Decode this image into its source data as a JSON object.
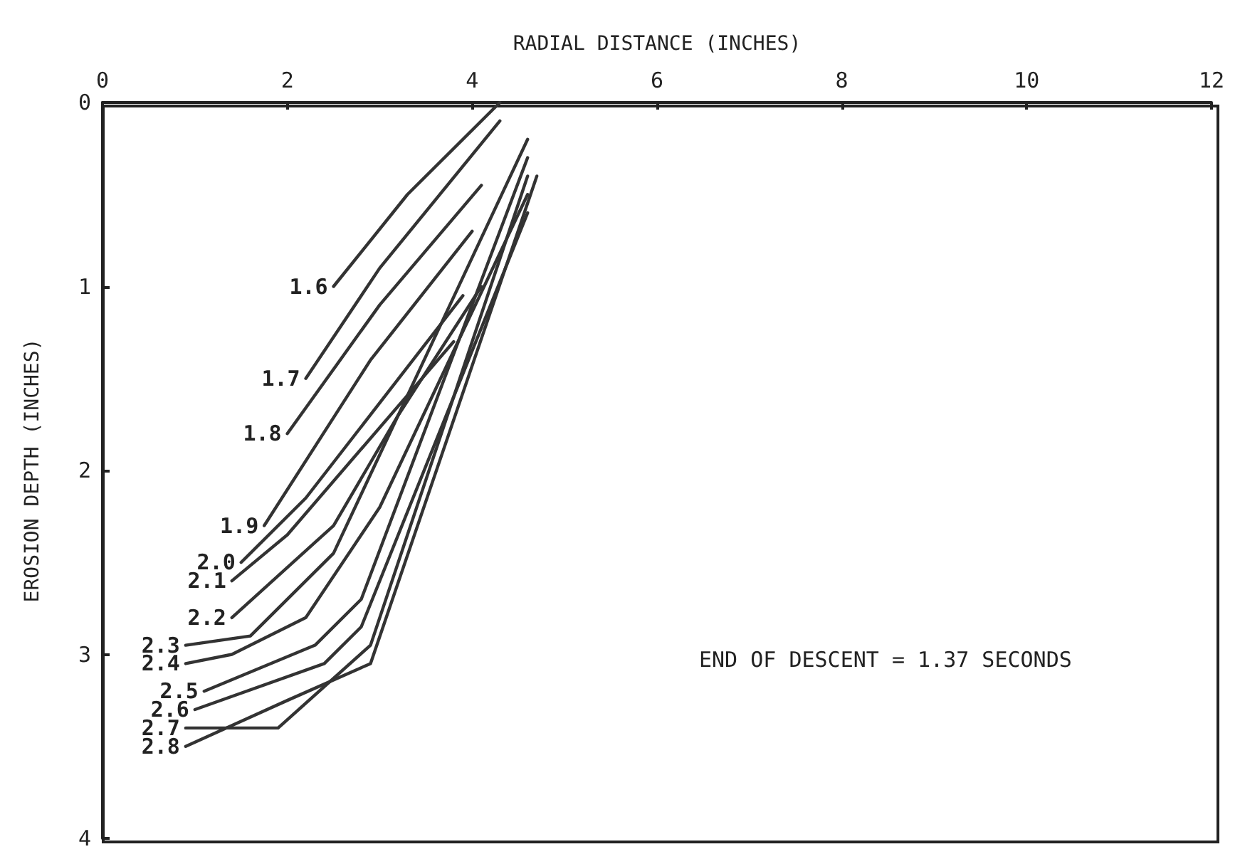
{
  "chart_data": {
    "type": "line",
    "xlabel": "RADIAL DISTANCE (INCHES)",
    "ylabel": "EROSION DEPTH (INCHES)",
    "xlim": [
      0,
      12
    ],
    "xticks": [
      0,
      2,
      4,
      6,
      8,
      10,
      12
    ],
    "ylim": [
      4,
      0
    ],
    "yticks": [
      0,
      1,
      2,
      3,
      4
    ],
    "grid": false,
    "legend": false,
    "marker": "none",
    "line_style": "solid",
    "annotations": [
      "END OF DESCENT = 1.37 SECONDS"
    ],
    "series": [
      {
        "name": "1.6",
        "color": "#333333",
        "x": [
          2.5,
          3.3,
          4.3
        ],
        "values": [
          1.0,
          0.5,
          0
        ]
      },
      {
        "name": "1.7",
        "color": "#333333",
        "x": [
          2.2,
          3.0,
          4.3
        ],
        "values": [
          1.5,
          0.9,
          0.1
        ]
      },
      {
        "name": "1.8",
        "color": "#333333",
        "x": [
          2.0,
          3.0,
          4.1
        ],
        "values": [
          1.8,
          1.1,
          0.45
        ]
      },
      {
        "name": "1.9",
        "color": "#333333",
        "x": [
          1.75,
          2.9,
          4.0
        ],
        "values": [
          2.3,
          1.4,
          0.7
        ]
      },
      {
        "name": "2.0",
        "color": "#333333",
        "x": [
          1.5,
          2.2,
          3.9
        ],
        "values": [
          2.5,
          2.15,
          1.05
        ]
      },
      {
        "name": "2.1",
        "color": "#333333",
        "x": [
          1.4,
          2.0,
          3.8
        ],
        "values": [
          2.6,
          2.35,
          1.3
        ]
      },
      {
        "name": "2.2",
        "color": "#333333",
        "x": [
          1.4,
          2.5,
          3.2,
          4.1
        ],
        "values": [
          2.8,
          2.3,
          1.7,
          1.0
        ]
      },
      {
        "name": "2.3",
        "color": "#333333",
        "x": [
          0.9,
          1.6,
          2.5,
          4.6
        ],
        "values": [
          2.95,
          2.9,
          2.45,
          0.2
        ]
      },
      {
        "name": "2.4",
        "color": "#333333",
        "x": [
          0.9,
          1.4,
          2.2,
          3.0,
          4.6
        ],
        "values": [
          3.05,
          3.0,
          2.8,
          2.2,
          0.5
        ]
      },
      {
        "name": "2.5",
        "color": "#333333",
        "x": [
          1.1,
          2.3,
          2.8,
          4.6
        ],
        "values": [
          3.2,
          2.95,
          2.7,
          0.3
        ]
      },
      {
        "name": "2.6",
        "color": "#333333",
        "x": [
          1.0,
          2.4,
          2.8,
          4.6
        ],
        "values": [
          3.3,
          3.05,
          2.85,
          0.6
        ]
      },
      {
        "name": "2.7",
        "color": "#333333",
        "x": [
          0.9,
          1.9,
          2.9,
          4.6
        ],
        "values": [
          3.4,
          3.4,
          2.95,
          0.4
        ]
      },
      {
        "name": "2.8",
        "color": "#333333",
        "x": [
          0.9,
          2.0,
          2.9,
          4.7
        ],
        "values": [
          3.5,
          3.25,
          3.05,
          0.4
        ]
      }
    ]
  }
}
